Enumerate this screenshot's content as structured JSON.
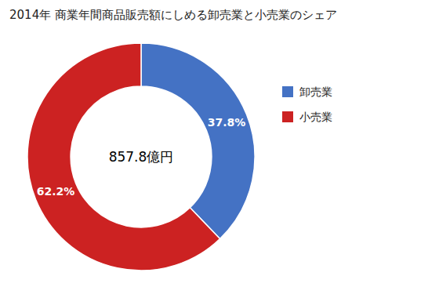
{
  "chart_data": {
    "type": "pie",
    "title": "2014年 商業年間商品販売額にしめる卸売業と小売業のシェア",
    "categories": [
      "卸売業",
      "小売業"
    ],
    "values": [
      37.8,
      62.2
    ],
    "value_labels": [
      "37.8%",
      "62.2%"
    ],
    "colors": [
      "#4472C4",
      "#CC2222"
    ],
    "annotation": "857.8億円",
    "data_labels": true,
    "legend": "right"
  }
}
